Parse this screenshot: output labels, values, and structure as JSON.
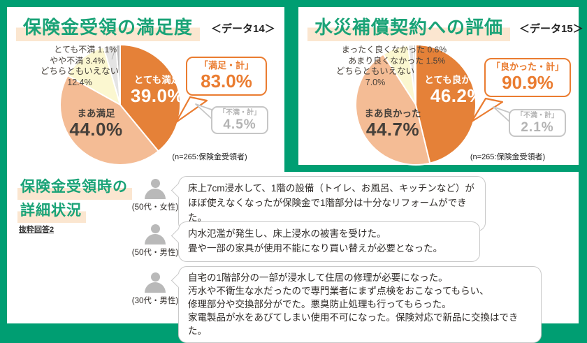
{
  "theme": {
    "frame_green": "#009e72",
    "title_green": "#1aa377",
    "accent_orange": "#ea7c30",
    "highlight_peach": "#fbe6d0",
    "gray_bubble": "#b3b3b3"
  },
  "chart_data": [
    {
      "type": "pie",
      "title": "保険金受領の満足度",
      "tag": "＜データ14＞",
      "note": "(n=265:保険金受領者)",
      "labels": [
        "とても満足",
        "まあ満足",
        "どちらともいえない",
        "やや不満",
        "とても不満"
      ],
      "values": [
        39.0,
        44.0,
        12.4,
        3.4,
        1.1
      ],
      "value_texts": [
        "39.0%",
        "44.0%",
        "12.4%",
        "3.4%",
        "1.1%"
      ],
      "colors": [
        "#e58138",
        "#f4bc95",
        "#fbf7d0",
        "#e4e4e4",
        "#bcbcbc"
      ],
      "start_angle_deg": -90,
      "legend": "labels drawn on/around slices",
      "callout_positive": {
        "label": "「満足・計」",
        "value": "83.0%"
      },
      "callout_negative": {
        "label": "「不満・計」",
        "value": "4.5%"
      }
    },
    {
      "type": "pie",
      "title": "水災補償契約への評価",
      "tag": "＜データ15＞",
      "note": "(n=265:保険金受領者)",
      "labels": [
        "とても良かった",
        "まあ良かった",
        "どちらともいえない",
        "あまり良くなかった",
        "まったく良くなかった"
      ],
      "values": [
        46.2,
        44.7,
        7.0,
        1.5,
        0.6
      ],
      "value_texts": [
        "46.2%",
        "44.7%",
        "7.0%",
        "1.5%",
        "0.6%"
      ],
      "colors": [
        "#e58138",
        "#f4bc95",
        "#fbf7d0",
        "#e4e4e4",
        "#bcbcbc"
      ],
      "start_angle_deg": -90,
      "legend": "labels drawn on/around slices",
      "callout_positive": {
        "label": "「良かった・計」",
        "value": "90.9%"
      },
      "callout_negative": {
        "label": "「不満・計」",
        "value": "2.1%"
      }
    }
  ],
  "bottom": {
    "title_line1": "保険金受領時の",
    "title_line2": "詳細状況",
    "subnote": "抜粋回答2",
    "testimonials": [
      {
        "who": "(50代・女性)",
        "text": "床上7cm浸水して、1階の設備（トイレ、お風呂、キッチンなど）が\nほぼ使えなくなったが保険金で1階部分は十分なリフォームができた。"
      },
      {
        "who": "(50代・男性)",
        "text": "内水氾濫が発生し、床上浸水の被害を受けた。\n畳や一部の家具が使用不能になり買い替えが必要となった。"
      },
      {
        "who": "(30代・男性)",
        "text": "自宅の1階部分の一部が浸水して住居の修理が必要になった。\n汚水や不衛生な水だったので専門業者にまず点検をおこなってもらい、\n修理部分や交換部分がでた。悪臭防止処理も行ってもらった。\n家電製品が水をあびてしまい使用不可になった。保険対応で新品に交換はできた。"
      }
    ]
  }
}
